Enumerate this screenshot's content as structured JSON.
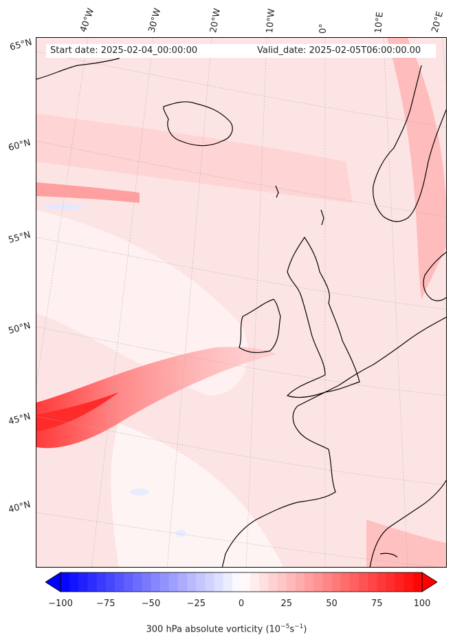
{
  "header": {
    "start_date": "Start date: 2025-02-04_00:00:00",
    "valid_date": "Valid_date: 2025-02-05T06:00:00.00"
  },
  "longitude_labels": [
    "40°W",
    "30°W",
    "20°W",
    "10°W",
    "0°",
    "10°E",
    "20°E"
  ],
  "latitude_labels": [
    "65°N",
    "60°N",
    "55°N",
    "50°N",
    "45°N",
    "40°N"
  ],
  "colorbar": {
    "ticks": [
      "−100",
      "−75",
      "−50",
      "−25",
      "0",
      "25",
      "50",
      "75",
      "100"
    ],
    "title_main": "300 hPa absolute vorticity (10",
    "title_exp1": "−5",
    "title_mid": "s",
    "title_exp2": "−1",
    "title_end": ")",
    "colormap": "bwr",
    "min": -100,
    "max": 100
  },
  "colors": {
    "background_field": "#fde6e6",
    "strong_positive": "#ff2a2a",
    "coastline": "#000000",
    "gridline": "#b0b0b0"
  }
}
